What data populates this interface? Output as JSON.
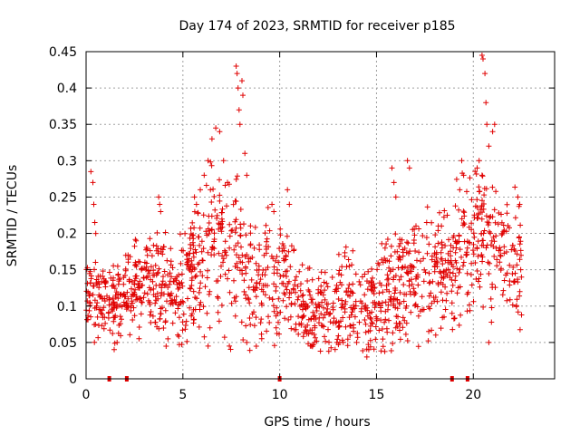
{
  "chart_data": {
    "type": "scatter",
    "title": "Day 174 of 2023, SRMTID for receiver p185",
    "xlabel": "GPS time / hours",
    "ylabel": "SRMTID / TECUs",
    "xlim": [
      0,
      24.2
    ],
    "ylim": [
      0,
      0.45
    ],
    "x_ticks": [
      0,
      5,
      10,
      15,
      20
    ],
    "x_tick_labels": [
      "0",
      "5",
      "10",
      "15",
      "20"
    ],
    "y_ticks": [
      0,
      0.05,
      0.1,
      0.15,
      0.2,
      0.25,
      0.3,
      0.35,
      0.4,
      0.45
    ],
    "y_tick_labels": [
      "0",
      "0.05",
      "0.1",
      "0.15",
      "0.2",
      "0.25",
      "0.3",
      "0.35",
      "0.4",
      "0.45"
    ],
    "grid": true,
    "marker": "plus",
    "color": "#e00000",
    "background_band": [
      [
        0.0,
        0.12,
        0.02
      ],
      [
        0.5,
        0.11,
        0.03
      ],
      [
        1.0,
        0.11,
        0.03
      ],
      [
        1.5,
        0.1,
        0.03
      ],
      [
        2.0,
        0.12,
        0.03
      ],
      [
        2.5,
        0.13,
        0.03
      ],
      [
        3.0,
        0.13,
        0.03
      ],
      [
        3.5,
        0.14,
        0.04
      ],
      [
        4.0,
        0.13,
        0.04
      ],
      [
        4.5,
        0.12,
        0.04
      ],
      [
        5.0,
        0.13,
        0.04
      ],
      [
        5.5,
        0.15,
        0.05
      ],
      [
        6.0,
        0.17,
        0.06
      ],
      [
        6.5,
        0.18,
        0.06
      ],
      [
        7.0,
        0.19,
        0.07
      ],
      [
        7.5,
        0.17,
        0.07
      ],
      [
        8.0,
        0.16,
        0.06
      ],
      [
        8.5,
        0.14,
        0.05
      ],
      [
        9.0,
        0.13,
        0.05
      ],
      [
        9.5,
        0.14,
        0.05
      ],
      [
        10.0,
        0.14,
        0.05
      ],
      [
        10.5,
        0.13,
        0.04
      ],
      [
        11.0,
        0.11,
        0.04
      ],
      [
        11.5,
        0.08,
        0.03
      ],
      [
        12.0,
        0.09,
        0.03
      ],
      [
        12.5,
        0.1,
        0.03
      ],
      [
        13.0,
        0.1,
        0.04
      ],
      [
        13.5,
        0.1,
        0.04
      ],
      [
        14.0,
        0.1,
        0.04
      ],
      [
        14.5,
        0.1,
        0.04
      ],
      [
        15.0,
        0.11,
        0.04
      ],
      [
        15.5,
        0.12,
        0.04
      ],
      [
        16.0,
        0.12,
        0.04
      ],
      [
        16.5,
        0.13,
        0.05
      ],
      [
        17.0,
        0.14,
        0.05
      ],
      [
        17.5,
        0.14,
        0.05
      ],
      [
        18.0,
        0.14,
        0.05
      ],
      [
        18.5,
        0.15,
        0.05
      ],
      [
        19.0,
        0.16,
        0.05
      ],
      [
        19.5,
        0.17,
        0.05
      ],
      [
        20.0,
        0.19,
        0.05
      ],
      [
        20.5,
        0.2,
        0.05
      ],
      [
        21.0,
        0.19,
        0.05
      ],
      [
        21.5,
        0.18,
        0.04
      ],
      [
        22.0,
        0.17,
        0.04
      ],
      [
        22.5,
        0.14,
        0.05
      ]
    ],
    "highlighted_points": [
      [
        0.25,
        0.285
      ],
      [
        0.35,
        0.27
      ],
      [
        0.4,
        0.24
      ],
      [
        0.45,
        0.215
      ],
      [
        0.5,
        0.2
      ],
      [
        3.75,
        0.25
      ],
      [
        3.8,
        0.24
      ],
      [
        3.85,
        0.23
      ],
      [
        5.6,
        0.25
      ],
      [
        5.7,
        0.24
      ],
      [
        5.9,
        0.26
      ],
      [
        6.1,
        0.28
      ],
      [
        6.3,
        0.3
      ],
      [
        6.5,
        0.33
      ],
      [
        6.7,
        0.345
      ],
      [
        6.9,
        0.34
      ],
      [
        7.1,
        0.3
      ],
      [
        7.3,
        0.27
      ],
      [
        7.75,
        0.43
      ],
      [
        7.8,
        0.42
      ],
      [
        7.85,
        0.4
      ],
      [
        7.9,
        0.37
      ],
      [
        7.95,
        0.35
      ],
      [
        8.05,
        0.41
      ],
      [
        8.1,
        0.39
      ],
      [
        8.2,
        0.31
      ],
      [
        8.3,
        0.28
      ],
      [
        9.6,
        0.24
      ],
      [
        9.7,
        0.23
      ],
      [
        10.4,
        0.26
      ],
      [
        10.5,
        0.24
      ],
      [
        15.8,
        0.29
      ],
      [
        15.9,
        0.27
      ],
      [
        16.0,
        0.25
      ],
      [
        16.6,
        0.3
      ],
      [
        16.7,
        0.29
      ],
      [
        19.3,
        0.26
      ],
      [
        19.4,
        0.3
      ],
      [
        19.5,
        0.28
      ],
      [
        20.2,
        0.29
      ],
      [
        20.3,
        0.3
      ],
      [
        20.45,
        0.445
      ],
      [
        20.5,
        0.44
      ],
      [
        20.6,
        0.42
      ],
      [
        20.65,
        0.38
      ],
      [
        20.7,
        0.35
      ],
      [
        20.8,
        0.32
      ],
      [
        21.0,
        0.34
      ],
      [
        21.1,
        0.35
      ],
      [
        22.3,
        0.25
      ],
      [
        22.4,
        0.24
      ]
    ],
    "low_outliers": [
      [
        1.6,
        0.05
      ],
      [
        6.3,
        0.045
      ],
      [
        7.4,
        0.045
      ],
      [
        8.3,
        0.05
      ],
      [
        14.5,
        0.03
      ],
      [
        14.6,
        0.04
      ],
      [
        11.8,
        0.05
      ],
      [
        20.8,
        0.05
      ],
      [
        13.1,
        0.05
      ],
      [
        18.9,
        0.09
      ]
    ],
    "zero_markers": [
      1.2,
      2.1,
      10.0,
      18.9,
      19.7
    ]
  }
}
